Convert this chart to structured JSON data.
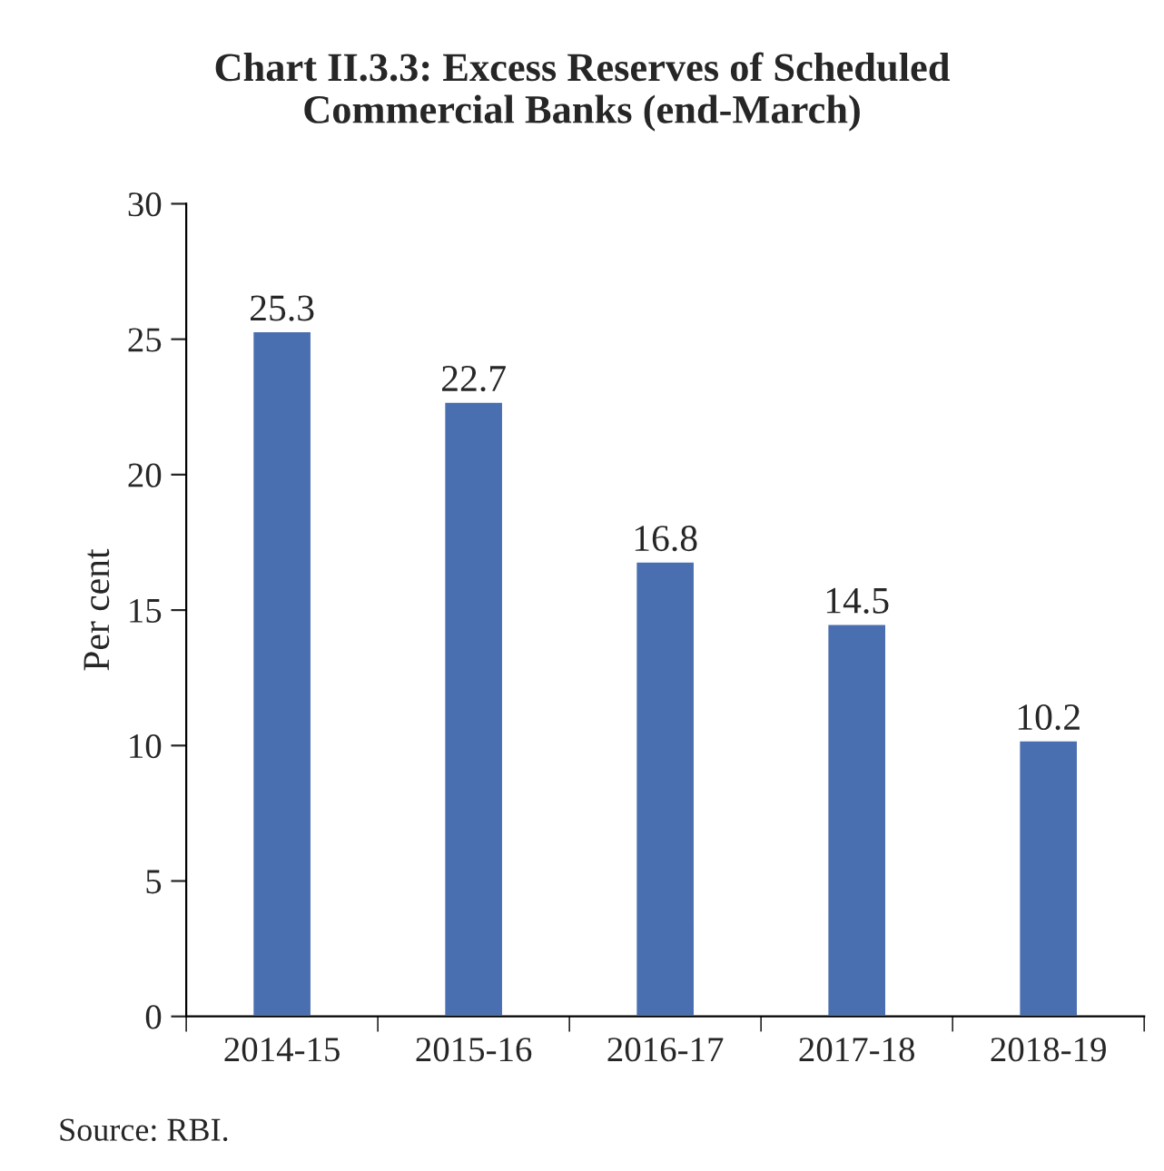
{
  "chart_data": {
    "type": "bar",
    "title": "Chart II.3.3: Excess Reserves of Scheduled\nCommercial Banks (end-March)",
    "ylabel": "Per cent",
    "categories": [
      "2014-15",
      "2015-16",
      "2016-17",
      "2017-18",
      "2018-19"
    ],
    "values": [
      25.3,
      22.7,
      16.8,
      14.5,
      10.2
    ],
    "color": "#4a6fb0",
    "data_labels": true,
    "ylim": [
      0,
      30
    ],
    "yticks": [
      0,
      5,
      10,
      15,
      20,
      25,
      30
    ],
    "grid": false,
    "annotations": [
      "Source: RBI."
    ]
  }
}
